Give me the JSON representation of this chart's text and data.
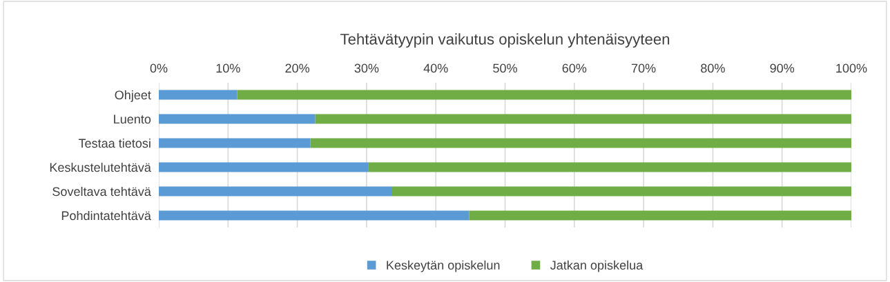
{
  "chart_data": {
    "type": "bar",
    "orientation": "horizontal",
    "stacked": true,
    "title": "Tehtävätyypin vaikutus opiskelun yhtenäisyyteen",
    "categories": [
      "Ohjeet",
      "Luento",
      "Testaa tietosi",
      "Keskustelutehtävä",
      "Soveltava tehtävä",
      "Pohdintatehtävä"
    ],
    "series": [
      {
        "name": "Keskeytän opiskelun",
        "color": "#5b9bd5",
        "values": [
          11.3,
          22.6,
          21.9,
          30.3,
          33.7,
          44.8
        ]
      },
      {
        "name": "Jatkan opiskelua",
        "color": "#70ad47",
        "values": [
          88.7,
          77.4,
          78.1,
          69.7,
          66.3,
          55.2
        ]
      }
    ],
    "xlim": [
      0,
      100
    ],
    "xticks": [
      {
        "value": 0,
        "label": "0%"
      },
      {
        "value": 10,
        "label": "10%"
      },
      {
        "value": 20,
        "label": "20%"
      },
      {
        "value": 30,
        "label": "30%"
      },
      {
        "value": 40,
        "label": "40%"
      },
      {
        "value": 50,
        "label": "50%"
      },
      {
        "value": 60,
        "label": "60%"
      },
      {
        "value": 70,
        "label": "70%"
      },
      {
        "value": 80,
        "label": "80%"
      },
      {
        "value": 90,
        "label": "90%"
      },
      {
        "value": 100,
        "label": "100%"
      }
    ],
    "grid": "x",
    "legend": "bottom"
  }
}
